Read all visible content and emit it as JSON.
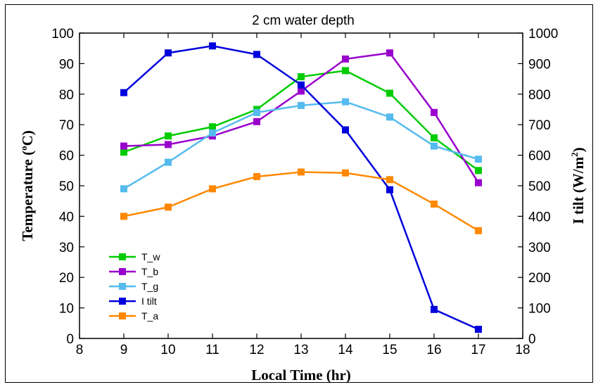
{
  "chart_data": {
    "type": "line",
    "title": "2 cm water depth",
    "xlabel": "Local Time (hr)",
    "ylabel": "Temperature (°C)",
    "ylabel_prefix": "Temperature (",
    "ylabel_degree": "o",
    "ylabel_suffix": "C)",
    "y2label": "I tilt (W/m²)",
    "y2label_prefix": "I tilt (W/m",
    "y2label_sup": "2",
    "y2label_suffix": ")",
    "xlim": [
      8,
      18
    ],
    "ylim": [
      0,
      100
    ],
    "y2lim": [
      0,
      1000
    ],
    "x_ticks": [
      "8",
      "9",
      "10",
      "11",
      "12",
      "13",
      "14",
      "15",
      "16",
      "17",
      "18"
    ],
    "y_ticks": [
      "0",
      "10",
      "20",
      "30",
      "40",
      "50",
      "60",
      "70",
      "80",
      "90",
      "100"
    ],
    "y2_ticks": [
      "0",
      "100",
      "200",
      "300",
      "400",
      "500",
      "600",
      "700",
      "800",
      "900",
      "1000"
    ],
    "x": [
      9,
      10,
      11,
      12,
      13,
      14,
      15,
      16,
      17
    ],
    "grid": false,
    "legend_position": "bottom-left",
    "series": [
      {
        "name": "T_w",
        "axis": "left",
        "color": "#00cc00",
        "values": [
          61,
          66.3,
          69.3,
          75,
          85.7,
          87.7,
          80.3,
          65.7,
          55
        ]
      },
      {
        "name": "T_b",
        "axis": "left",
        "color": "#9900cc",
        "values": [
          63,
          63.5,
          66.3,
          71,
          81,
          91.5,
          93.5,
          74,
          51
        ]
      },
      {
        "name": "T_g",
        "axis": "left",
        "color": "#55bbee",
        "values": [
          49,
          57.7,
          67.3,
          74,
          76.3,
          77.5,
          72.5,
          63,
          58.7
        ]
      },
      {
        "name": "I tilt",
        "axis": "right",
        "color": "#0000dd",
        "values": [
          805,
          935,
          958,
          930,
          830,
          683,
          487,
          95,
          30
        ]
      },
      {
        "name": "T_a",
        "axis": "left",
        "color": "#ff8800",
        "values": [
          40,
          43,
          49,
          53,
          54.5,
          54.2,
          52,
          44,
          35.3
        ]
      }
    ]
  }
}
